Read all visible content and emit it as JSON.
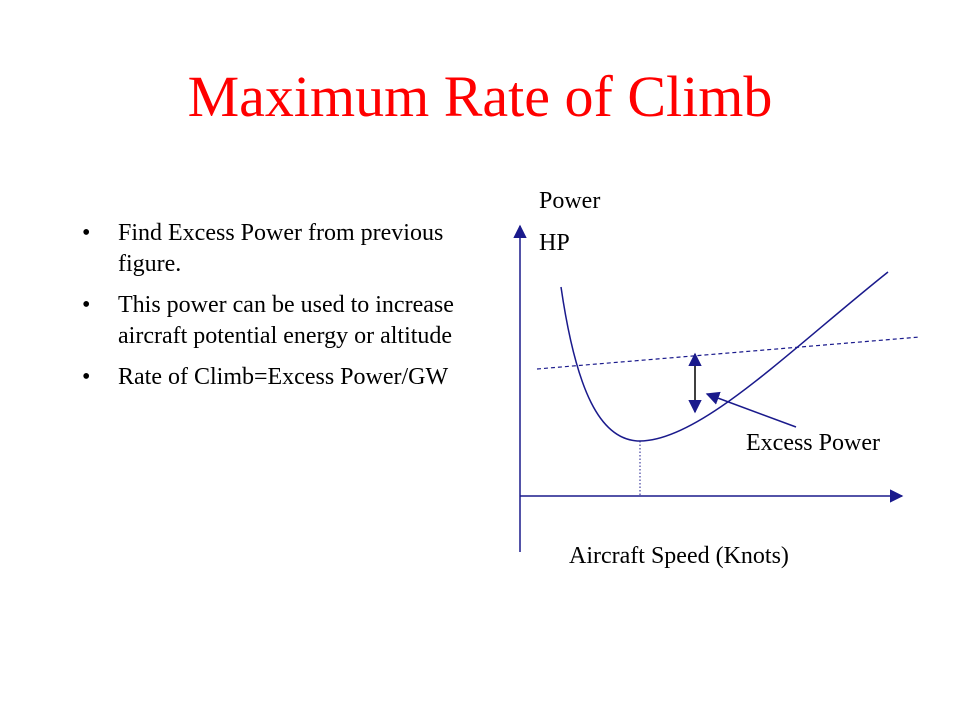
{
  "slide": {
    "title": "Maximum Rate of Climb",
    "title_color": "#ff0000",
    "text_color": "#000000",
    "bullets": [
      {
        "marker": "•",
        "text": "Find Excess Power from previous figure."
      },
      {
        "marker": "•",
        "text": "This power can be used to increase aircraft potential energy or altitude"
      },
      {
        "marker": "•",
        "text": "Rate of Climb=Excess Power/GW"
      }
    ]
  },
  "diagram": {
    "y_axis_label_line1": "Power",
    "y_axis_label_line2": "HP",
    "x_axis_label": "Aircraft Speed (Knots)",
    "excess_power_label": "Excess Power",
    "curve_color": "#1a1a8c",
    "axis_color": "#1a1a8c"
  }
}
